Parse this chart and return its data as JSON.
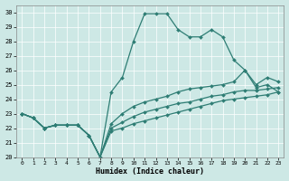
{
  "xlabel": "Humidex (Indice chaleur)",
  "xlim": [
    -0.5,
    23.5
  ],
  "ylim": [
    20,
    30.5
  ],
  "yticks": [
    20,
    21,
    22,
    23,
    24,
    25,
    26,
    27,
    28,
    29,
    30
  ],
  "xticks": [
    0,
    1,
    2,
    3,
    4,
    5,
    6,
    7,
    8,
    9,
    10,
    11,
    12,
    13,
    14,
    15,
    16,
    17,
    18,
    19,
    20,
    21,
    22,
    23
  ],
  "bg_color": "#cde8e5",
  "line_color": "#2e7d74",
  "grid_color": "#ffffff",
  "series": [
    {
      "x": [
        0,
        1,
        2,
        3,
        4,
        5,
        6,
        7,
        8,
        9,
        10,
        11,
        12,
        13,
        14,
        15,
        16,
        17,
        18,
        19,
        20,
        21,
        22,
        23
      ],
      "y": [
        23,
        22.7,
        22.0,
        22.2,
        22.2,
        22.2,
        21.5,
        20.0,
        24.5,
        25.5,
        28.0,
        29.9,
        29.9,
        29.9,
        28.8,
        28.3,
        28.3,
        28.8,
        28.3,
        26.7,
        26.0,
        24.8,
        25.0,
        24.5
      ]
    },
    {
      "x": [
        0,
        1,
        2,
        3,
        4,
        5,
        6,
        7,
        8,
        9,
        10,
        11,
        12,
        13,
        14,
        15,
        16,
        17,
        18,
        19,
        20,
        21,
        22,
        23
      ],
      "y": [
        23,
        22.7,
        22.0,
        22.2,
        22.2,
        22.2,
        21.5,
        20.0,
        22.3,
        23.0,
        23.5,
        23.8,
        24.0,
        24.2,
        24.5,
        24.7,
        24.8,
        24.9,
        25.0,
        25.2,
        26.0,
        25.0,
        25.5,
        25.2
      ]
    },
    {
      "x": [
        0,
        1,
        2,
        3,
        4,
        5,
        6,
        7,
        8,
        9,
        10,
        11,
        12,
        13,
        14,
        15,
        16,
        17,
        18,
        19,
        20,
        21,
        22,
        23
      ],
      "y": [
        23,
        22.7,
        22.0,
        22.2,
        22.2,
        22.2,
        21.5,
        20.0,
        22.0,
        22.4,
        22.8,
        23.1,
        23.3,
        23.5,
        23.7,
        23.8,
        24.0,
        24.2,
        24.3,
        24.5,
        24.6,
        24.6,
        24.7,
        24.8
      ]
    },
    {
      "x": [
        0,
        1,
        2,
        3,
        4,
        5,
        6,
        7,
        8,
        9,
        10,
        11,
        12,
        13,
        14,
        15,
        16,
        17,
        18,
        19,
        20,
        21,
        22,
        23
      ],
      "y": [
        23,
        22.7,
        22.0,
        22.2,
        22.2,
        22.2,
        21.5,
        20.0,
        21.8,
        22.0,
        22.3,
        22.5,
        22.7,
        22.9,
        23.1,
        23.3,
        23.5,
        23.7,
        23.9,
        24.0,
        24.1,
        24.2,
        24.3,
        24.5
      ]
    }
  ],
  "markersize": 2.0,
  "linewidth": 0.9
}
